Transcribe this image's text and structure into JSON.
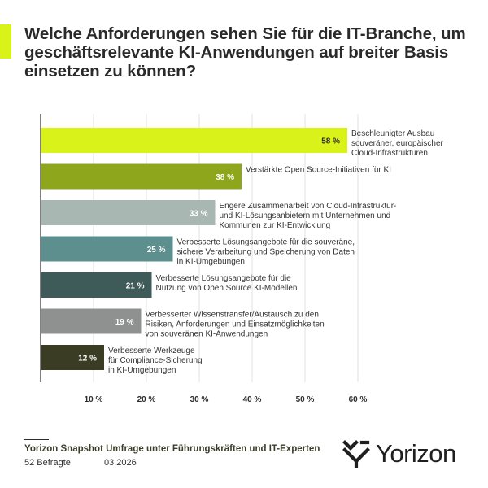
{
  "header": {
    "title": "Welche Anforderungen sehen Sie für die IT-Branche, um geschäftsrelevante KI-Anwendungen auf breiter Basis einsetzen zu können?"
  },
  "chart_data": {
    "type": "bar",
    "orientation": "horizontal",
    "title": "",
    "xlabel": "",
    "ylabel": "",
    "xlim": [
      0,
      60
    ],
    "x_ticks": [
      "10 %",
      "20 %",
      "30 %",
      "40 %",
      "50 %",
      "60 %"
    ],
    "grid": true,
    "categories": [
      "Beschleunigter Ausbau souveräner, europäischer Cloud-Infrastrukturen",
      "Verstärkte Open Source-Initiativen für KI",
      "Engere Zusammenarbeit von Cloud-Infrastruktur- und KI-Lösungsanbietern mit Unternehmen und Kommunen zur KI-Entwicklung",
      "Verbesserte Lösungsangebote für die souveräne, sichere Verarbeitung und Speicherung von Daten in KI-Umgebungen",
      "Verbesserte Lösungsangebote für die Nutzung von Open Source KI-Modellen",
      "Verbesserter Wissenstransfer/Austausch zu den Risiken, Anforderungen und Einsatzmöglichkeiten von souveränen KI-Anwendungen",
      "Verbesserte Werkzeuge für Compliance-Sicherung in KI-Umgebungen"
    ],
    "label_lines": [
      [
        "Beschleunigter Ausbau",
        "souveräner, europäischer",
        "Cloud-Infrastrukturen"
      ],
      [
        "Verstärkte Open Source-Initiativen für KI"
      ],
      [
        "Engere Zusammenarbeit von Cloud-Infrastruktur-",
        "und KI-Lösungsanbietern mit Unternehmen und",
        "Kommunen zur KI-Entwicklung"
      ],
      [
        "Verbesserte Lösungsangebote für die souveräne,",
        "sichere Verarbeitung und Speicherung von Daten",
        "in KI-Umgebungen"
      ],
      [
        "Verbesserte Lösungsangebote für die",
        "Nutzung von Open Source KI-Modellen"
      ],
      [
        "Verbesserter Wissenstransfer/Austausch zu den",
        "Risiken, Anforderungen und Einsatzmöglichkeiten",
        "von souveränen KI-Anwendungen"
      ],
      [
        "Verbesserte Werkzeuge",
        "für Compliance-Sicherung",
        "in KI-Umgebungen"
      ]
    ],
    "values": [
      58,
      38,
      33,
      25,
      21,
      19,
      12
    ],
    "value_labels": [
      "58 %",
      "38 %",
      "33 %",
      "25 %",
      "21 %",
      "19 %",
      "12 %"
    ],
    "colors": [
      "#d8f21a",
      "#8ea61c",
      "#a9b7b3",
      "#5e8f8f",
      "#3f5b59",
      "#8f9191",
      "#3a3d24"
    ],
    "value_label_colors": [
      "#2b2b2b",
      "#ffffff",
      "#ffffff",
      "#ffffff",
      "#ffffff",
      "#ffffff",
      "#ffffff"
    ]
  },
  "footer": {
    "survey_title": "Yorizon Snapshot Umfrage unter Führungskräften und IT-Experten",
    "respondents": "52 Befragte",
    "date": "03.2026"
  },
  "brand": {
    "name": "Yorizon",
    "logo_icon": "yorizon-mark-icon",
    "accent": "#d8f21a"
  }
}
